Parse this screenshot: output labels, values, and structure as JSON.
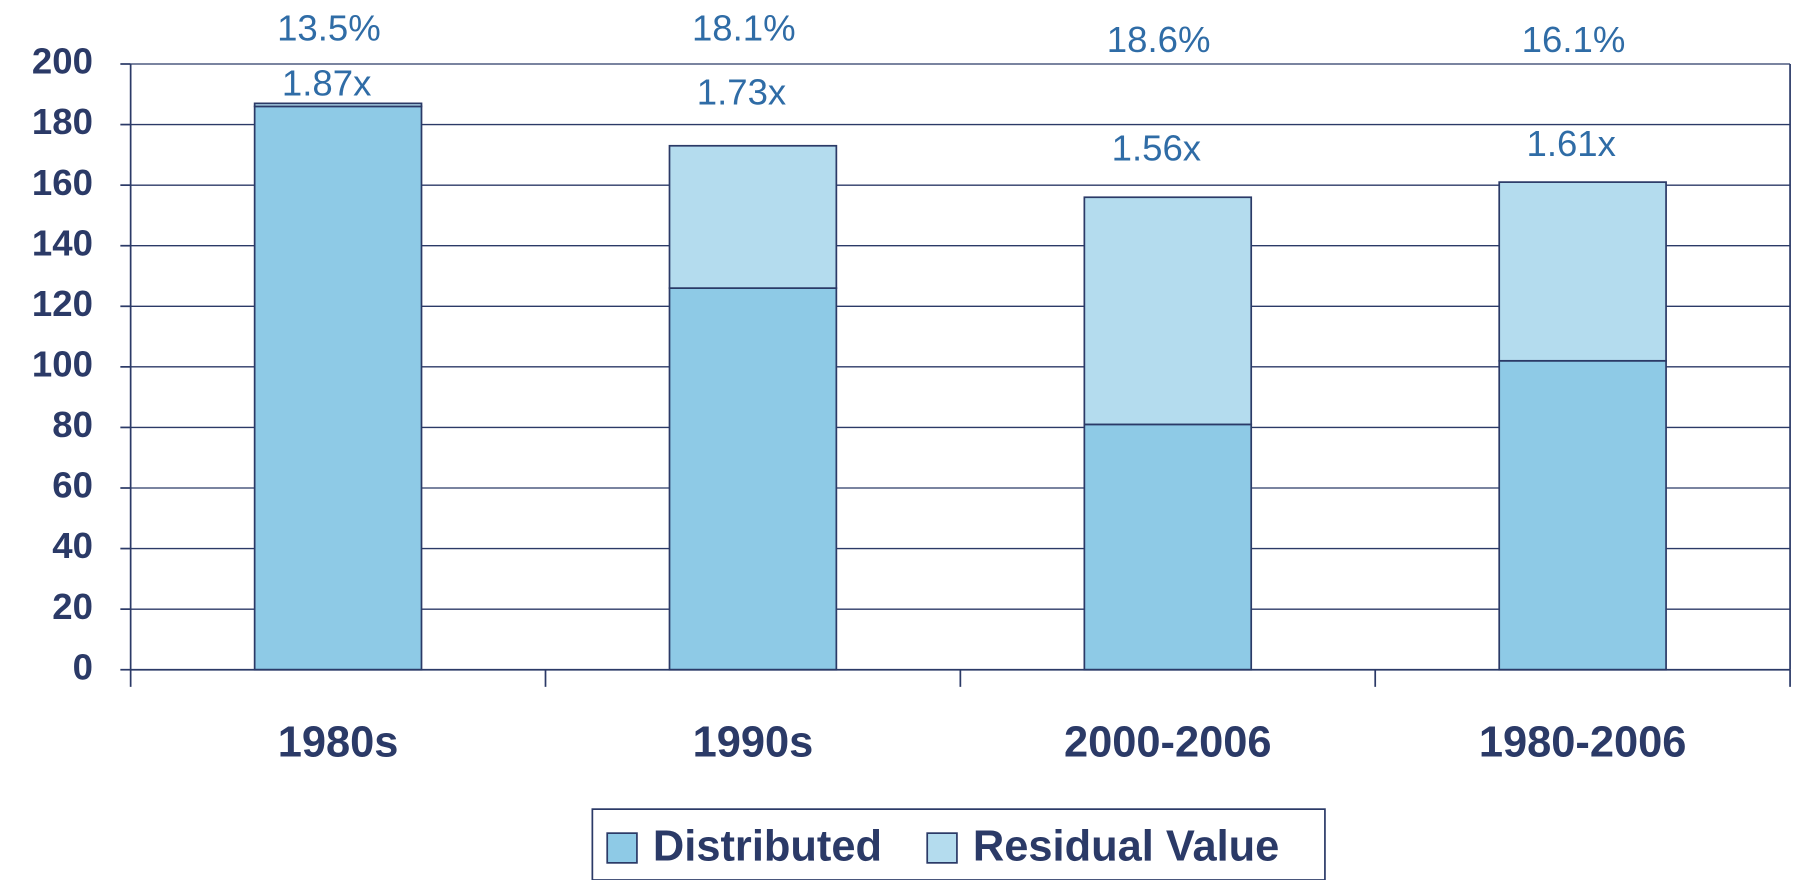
{
  "chart_data": {
    "type": "stacked_bar",
    "categories": [
      "1980s",
      "1990s",
      "2000-2006",
      "1980-2006"
    ],
    "series": [
      {
        "name": "Distributed",
        "color": "#8ecae6",
        "values": [
          186,
          126,
          81,
          102
        ]
      },
      {
        "name": "Residual Value",
        "color": "#b4dcee",
        "values": [
          1,
          47,
          75,
          59
        ]
      }
    ],
    "multiple_labels": [
      "1.87x",
      "1.73x",
      "1.56x",
      "1.61x"
    ],
    "percent_labels": [
      "13.5%",
      "18.1%",
      "18.6%",
      "16.1%"
    ],
    "ylim": [
      0,
      200
    ],
    "yticks": [
      0,
      20,
      40,
      60,
      80,
      100,
      120,
      140,
      160,
      180,
      200
    ],
    "grid": true,
    "legend": "bottom"
  }
}
